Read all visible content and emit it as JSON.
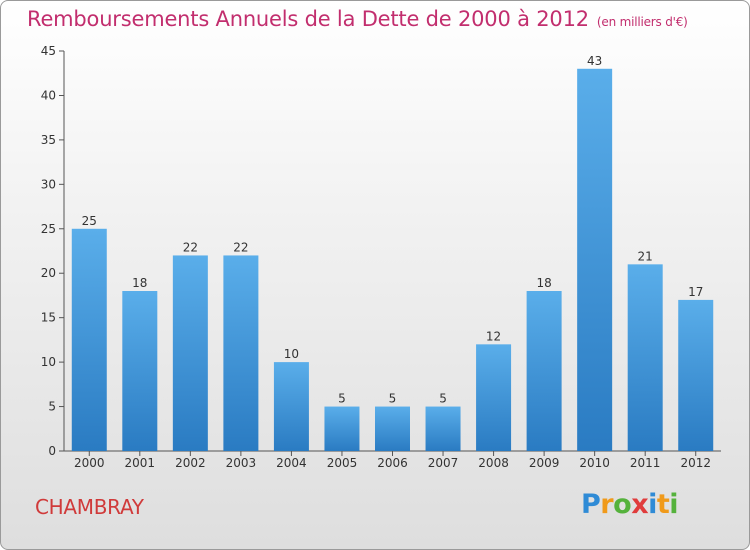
{
  "header": {
    "title": "Remboursements Annuels de la Dette de 2000 à 2012",
    "unit": "(en milliers d'€)"
  },
  "footer": {
    "commune": "CHAMBRAY",
    "logo_text": "Proxiti"
  },
  "colors": {
    "title": "#c22e6e",
    "commune": "#d03a3a",
    "bar_top": "#5aaeea",
    "bar_bottom": "#2a7bc2"
  },
  "chart_data": {
    "type": "bar",
    "title": "Remboursements Annuels de la Dette de 2000 à 2012",
    "subtitle": "(en milliers d'€)",
    "xlabel": "",
    "ylabel": "",
    "categories": [
      "2000",
      "2001",
      "2002",
      "2003",
      "2004",
      "2005",
      "2006",
      "2007",
      "2008",
      "2009",
      "2010",
      "2011",
      "2012"
    ],
    "values": [
      25,
      18,
      22,
      22,
      10,
      5,
      5,
      5,
      12,
      18,
      43,
      21,
      17
    ],
    "ylim": [
      0,
      45
    ],
    "yticks": [
      0,
      5,
      10,
      15,
      20,
      25,
      30,
      35,
      40,
      45
    ],
    "grid": false,
    "legend": "none"
  }
}
